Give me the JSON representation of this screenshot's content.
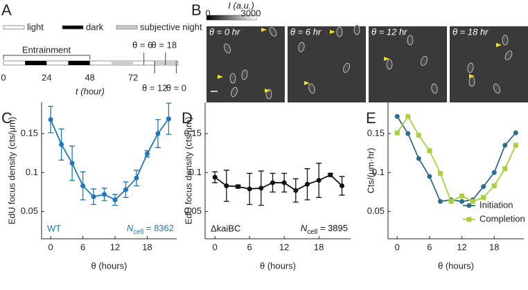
{
  "panel_labels": [
    "A",
    "B",
    "C",
    "D",
    "E"
  ],
  "timeline": {
    "legend": [
      "light",
      "dark",
      "subjective night"
    ],
    "entrainment": "Entrainment",
    "xlim": [
      0,
      97
    ],
    "xticks": [
      0,
      24,
      48,
      72
    ],
    "xlabel": "t (hour)",
    "dark": [
      [
        12,
        24
      ],
      [
        36,
        48
      ]
    ],
    "subjective_night": [
      [
        60,
        72
      ],
      [
        84,
        96
      ]
    ],
    "entrainment_span": [
      0,
      48
    ],
    "markers": [
      {
        "label": "θ = 6",
        "t": 78
      },
      {
        "label": "θ = 18",
        "t": 90
      },
      {
        "label": "θ = 12",
        "t": 84
      },
      {
        "label": "θ = 0",
        "t": 96
      }
    ]
  },
  "images": {
    "colorbar_label": "I (a.u.)",
    "colorbar_min": "0",
    "colorbar_max": "3000",
    "tiles": [
      "θ = 0 hr",
      "θ = 6 hr",
      "θ = 12 hr",
      "θ = 18 hr"
    ]
  },
  "chart_data": [
    {
      "type": "line",
      "xlabel": "θ (hours)",
      "ylabel": "EdU focus density (cts/μm)",
      "strain": "WT",
      "n_symbol": "N",
      "n_subscript": "cell",
      "n_text": "= 8362",
      "color": "#1f78b8",
      "x": [
        0,
        2,
        4,
        6,
        8,
        10,
        12,
        14,
        16,
        18,
        20,
        22
      ],
      "values": [
        0.168,
        0.136,
        0.112,
        0.083,
        0.069,
        0.072,
        0.065,
        0.078,
        0.093,
        0.124,
        0.15,
        0.169
      ],
      "errors": [
        0.017,
        0.02,
        0.022,
        0.018,
        0.01,
        0.008,
        0.007,
        0.01,
        0.01,
        0.004,
        0.018,
        0.02
      ],
      "xlim": [
        -1.7,
        23.5
      ],
      "xticks": [
        0,
        6,
        12,
        18
      ],
      "ylim": [
        0.015,
        0.19
      ],
      "yticks": [
        0.05,
        0.1,
        0.15
      ]
    },
    {
      "type": "line",
      "xlabel": "θ (hours)",
      "ylabel": "EdU focus density (cts/μm)",
      "strain": "ΔkaiBC",
      "n_symbol": "N",
      "n_subscript": "cell",
      "n_text": "= 3895",
      "color": "#111111",
      "x": [
        0,
        2,
        4,
        6,
        8,
        10,
        12,
        14,
        16,
        18,
        20,
        22
      ],
      "values": [
        0.094,
        0.083,
        0.082,
        0.079,
        0.08,
        0.087,
        0.087,
        0.077,
        0.085,
        0.09,
        0.097,
        0.083
      ],
      "errors": [
        0.007,
        0.02,
        0.002,
        0.02,
        0.022,
        0.012,
        0.012,
        0.015,
        0.02,
        0.022,
        0.002,
        0.012
      ],
      "xlim": [
        -1.7,
        23.5
      ],
      "xticks": [
        0,
        6,
        12,
        18
      ],
      "ylim": [
        0.015,
        0.19
      ],
      "yticks": [
        0.05,
        0.1,
        0.15
      ]
    },
    {
      "type": "line",
      "xlabel": "θ (hours)",
      "ylabel": "Cts/(μm·hr)",
      "x": [
        0,
        2,
        4,
        6,
        8,
        10,
        12,
        14,
        16,
        18,
        20,
        22
      ],
      "series": [
        {
          "name": "Initiation",
          "color": "#2c6e8a",
          "values": [
            0.172,
            0.15,
            0.118,
            0.095,
            0.063,
            0.065,
            0.063,
            0.065,
            0.082,
            0.1,
            0.135,
            0.151
          ]
        },
        {
          "name": "Completion",
          "color": "#a8d03a",
          "values": [
            0.151,
            0.172,
            0.148,
            0.128,
            0.099,
            0.063,
            0.07,
            0.063,
            0.068,
            0.083,
            0.105,
            0.135
          ]
        }
      ],
      "legend": "lower right",
      "xlim": [
        -1.7,
        23.5
      ],
      "xticks": [
        0,
        6,
        12,
        18
      ],
      "ylim": [
        0.015,
        0.19
      ],
      "yticks": [
        0.05,
        0.1,
        0.15
      ]
    }
  ]
}
